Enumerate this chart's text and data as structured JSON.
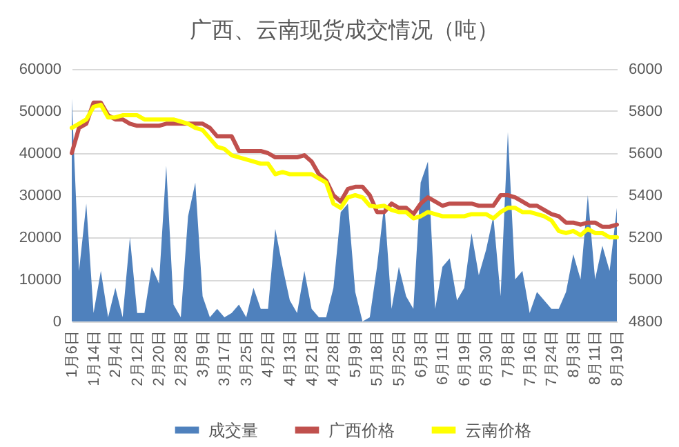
{
  "chart_data": {
    "type": "area",
    "title": "广西、云南现货成交情况（吨）",
    "categories": [
      "1月6日",
      null,
      null,
      "1月14日",
      null,
      null,
      "2月4日",
      null,
      null,
      "2月12日",
      null,
      null,
      "2月20日",
      null,
      null,
      "2月28日",
      null,
      null,
      "3月9日",
      null,
      null,
      "3月17日",
      null,
      null,
      "3月25日",
      null,
      null,
      "4月2日",
      null,
      null,
      "4月13日",
      null,
      null,
      "4月21日",
      null,
      null,
      "4月28日",
      null,
      null,
      "5月9日",
      null,
      null,
      "5月18日",
      null,
      null,
      "5月25日",
      null,
      null,
      "6月3日",
      null,
      null,
      "6月11日",
      null,
      null,
      "6月19日",
      null,
      null,
      "6月30日",
      null,
      null,
      "7月8日",
      null,
      null,
      "7月16日",
      null,
      null,
      "7月24日",
      null,
      null,
      "8月3日",
      null,
      null,
      "8月11日",
      null,
      null,
      "8月19日"
    ],
    "series": [
      {
        "name": "成交量",
        "color": "#4f81bd",
        "values": [
          53000,
          12000,
          28000,
          2000,
          12000,
          1000,
          8000,
          1000,
          20000,
          2000,
          2000,
          13000,
          9000,
          37000,
          4000,
          1000,
          25000,
          33000,
          6000,
          1000,
          3000,
          1000,
          2000,
          4000,
          1000,
          8000,
          3000,
          3000,
          22000,
          13000,
          5000,
          2000,
          12000,
          3000,
          1000,
          1000,
          8000,
          26000,
          28000,
          7000,
          0,
          1000,
          13000,
          28000,
          3000,
          13000,
          6000,
          3000,
          33000,
          38000,
          3000,
          13000,
          15000,
          5000,
          8000,
          21000,
          11000,
          17000,
          25000,
          6000,
          45000,
          10000,
          12000,
          2000,
          7000,
          5000,
          3000,
          3000,
          7000,
          16000,
          10000,
          30000,
          10000,
          18000,
          12000,
          27000
        ]
      },
      {
        "name": "广西价格",
        "type": "line",
        "axis": "y2",
        "color": "#c0504d",
        "values": [
          5600,
          5720,
          5740,
          5840,
          5840,
          5780,
          5760,
          5760,
          5740,
          5730,
          5730,
          5730,
          5730,
          5740,
          5740,
          5740,
          5740,
          5740,
          5740,
          5720,
          5680,
          5680,
          5680,
          5610,
          5610,
          5610,
          5610,
          5600,
          5580,
          5580,
          5580,
          5580,
          5590,
          5560,
          5500,
          5470,
          5400,
          5370,
          5430,
          5440,
          5440,
          5400,
          5320,
          5320,
          5360,
          5340,
          5340,
          5310,
          5360,
          5390,
          5370,
          5350,
          5360,
          5360,
          5360,
          5360,
          5350,
          5350,
          5350,
          5400,
          5400,
          5390,
          5370,
          5350,
          5350,
          5330,
          5310,
          5300,
          5270,
          5270,
          5260,
          5270,
          5270,
          5250,
          5250,
          5260
        ]
      },
      {
        "name": "云南价格",
        "type": "line",
        "axis": "y2",
        "color": "#ffff00",
        "values": [
          5720,
          5740,
          5760,
          5820,
          5830,
          5770,
          5770,
          5780,
          5780,
          5780,
          5760,
          5760,
          5760,
          5760,
          5760,
          5750,
          5740,
          5720,
          5710,
          5670,
          5630,
          5620,
          5590,
          5580,
          5570,
          5560,
          5550,
          5550,
          5500,
          5510,
          5500,
          5500,
          5500,
          5500,
          5480,
          5460,
          5360,
          5340,
          5390,
          5400,
          5390,
          5350,
          5345,
          5350,
          5330,
          5320,
          5320,
          5290,
          5300,
          5320,
          5310,
          5300,
          5300,
          5300,
          5300,
          5310,
          5310,
          5310,
          5290,
          5320,
          5340,
          5340,
          5320,
          5320,
          5310,
          5300,
          5280,
          5230,
          5220,
          5230,
          5210,
          5240,
          5220,
          5220,
          5200,
          5200
        ]
      }
    ],
    "ylim": [
      0,
      60000
    ],
    "yticks": [
      0,
      10000,
      20000,
      30000,
      40000,
      50000,
      60000
    ],
    "y2lim": [
      4800,
      6000
    ],
    "y2ticks": [
      4800,
      5000,
      5200,
      5400,
      5600,
      5800,
      6000
    ],
    "grid": "y",
    "legend": "bottom"
  }
}
